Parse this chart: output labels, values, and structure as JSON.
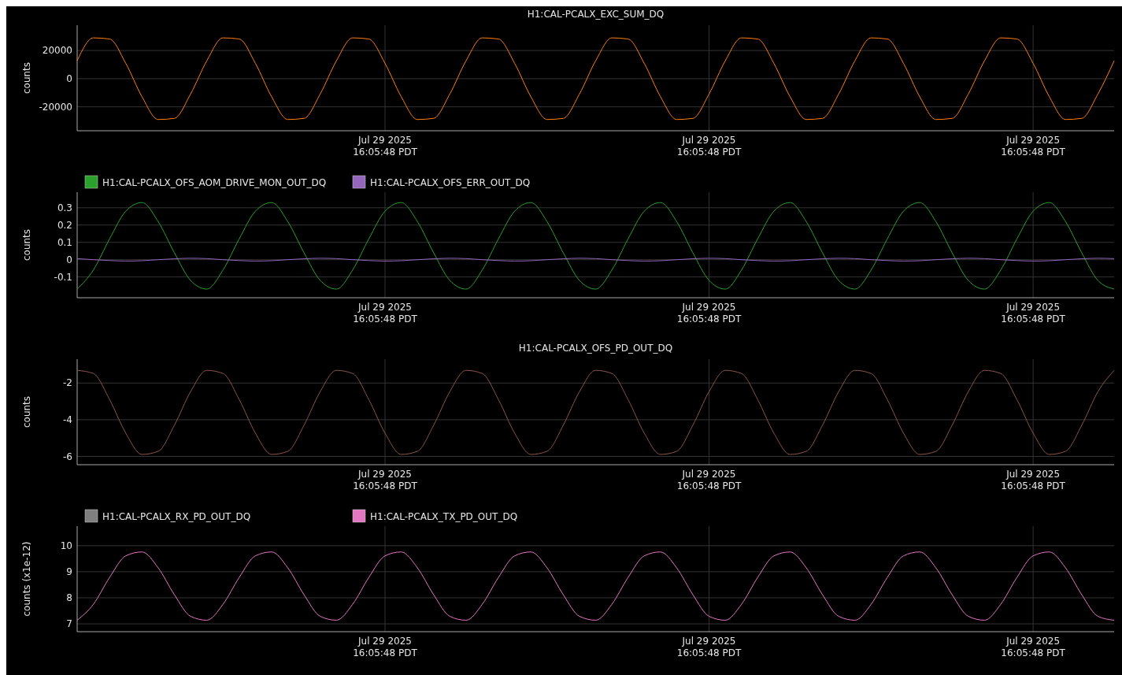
{
  "chart_data": [
    {
      "type": "line",
      "title": "H1:CAL-PCALX_EXC_SUM_DQ",
      "ylabel": "counts",
      "grid": true,
      "ylim": [
        -37000,
        38000
      ],
      "yticks": [
        -20000,
        0,
        20000
      ],
      "categories": [
        null,
        null,
        null,
        null,
        null,
        null,
        null,
        null,
        null,
        null,
        null,
        null,
        null,
        null,
        null,
        null,
        null,
        null,
        null,
        "Jul 29 2025\n16:05:48 PDT",
        null,
        null,
        null,
        null,
        null,
        null,
        null,
        null,
        null,
        null,
        null,
        null,
        null,
        null,
        null,
        null,
        null,
        null,
        null,
        "Jul 29 2025\n16:05:48 PDT",
        null,
        null,
        null,
        null,
        null,
        null,
        null,
        null,
        null,
        null,
        null,
        null,
        null,
        null,
        null,
        null,
        null,
        null,
        null,
        "Jul 29 2025\n16:05:48 PDT",
        null,
        null,
        null,
        null,
        null
      ],
      "series": [
        {
          "color": "#ff7f0e",
          "values": [
            12700,
            29000,
            28200,
            10900,
            -12800,
            -29000,
            -28200,
            -10900,
            12700,
            29000,
            28200,
            10900,
            -12800,
            -29000,
            -28200,
            -10900,
            12700,
            29000,
            28200,
            10900,
            -12800,
            -29000,
            -28200,
            -10900,
            12700,
            29000,
            28200,
            10900,
            -12800,
            -29000,
            -28200,
            -10900,
            12700,
            29000,
            28200,
            10900,
            -12800,
            -29000,
            -28200,
            -10900,
            12700,
            29000,
            28200,
            10900,
            -12800,
            -29000,
            -28200,
            -10900,
            12700,
            29000,
            28200,
            10900,
            -12800,
            -29000,
            -28200,
            -10900,
            12700,
            29000,
            28200,
            10900,
            -12800,
            -29000,
            -28200,
            -10900,
            12700
          ]
        }
      ]
    },
    {
      "type": "line",
      "ylabel": "counts",
      "grid": true,
      "legend": "top left",
      "ylim": [
        -0.22,
        0.39
      ],
      "yticks": [
        -0.1,
        0,
        0.1,
        0.2,
        0.3
      ],
      "categories": [
        null,
        null,
        null,
        null,
        null,
        null,
        null,
        null,
        null,
        null,
        null,
        null,
        null,
        null,
        null,
        null,
        null,
        null,
        null,
        "Jul 29 2025\n16:05:48 PDT",
        null,
        null,
        null,
        null,
        null,
        null,
        null,
        null,
        null,
        null,
        null,
        null,
        null,
        null,
        null,
        null,
        null,
        null,
        null,
        "Jul 29 2025\n16:05:48 PDT",
        null,
        null,
        null,
        null,
        null,
        null,
        null,
        null,
        null,
        null,
        null,
        null,
        null,
        null,
        null,
        null,
        null,
        null,
        null,
        "Jul 29 2025\n16:05:48 PDT",
        null,
        null,
        null,
        null,
        null
      ],
      "series": [
        {
          "name": "H1:CAL-PCALX_OFS_AOM_DRIVE_MON_OUT_DQ",
          "color": "#2ca02c",
          "values": [
            -0.17,
            -0.06,
            0.12,
            0.28,
            0.33,
            0.22,
            0.04,
            -0.12,
            -0.17,
            -0.06,
            0.12,
            0.28,
            0.33,
            0.22,
            0.04,
            -0.12,
            -0.17,
            -0.06,
            0.12,
            0.28,
            0.33,
            0.22,
            0.04,
            -0.12,
            -0.17,
            -0.06,
            0.12,
            0.28,
            0.33,
            0.22,
            0.04,
            -0.12,
            -0.17,
            -0.06,
            0.12,
            0.28,
            0.33,
            0.22,
            0.04,
            -0.12,
            -0.17,
            -0.06,
            0.12,
            0.28,
            0.33,
            0.22,
            0.04,
            -0.12,
            -0.17,
            -0.06,
            0.12,
            0.28,
            0.33,
            0.22,
            0.04,
            -0.12,
            -0.17,
            -0.06,
            0.12,
            0.28,
            0.33,
            0.22,
            0.04,
            -0.12,
            -0.17
          ]
        },
        {
          "name": "H1:CAL-PCALX_OFS_ERR_OUT_DQ",
          "color": "#9467bd",
          "values": [
            0.006,
            0,
            -0.005,
            -0.008,
            -0.006,
            0,
            0.005,
            0.008,
            0.006,
            0,
            -0.005,
            -0.008,
            -0.006,
            0,
            0.005,
            0.008,
            0.006,
            0,
            -0.005,
            -0.008,
            -0.006,
            0,
            0.005,
            0.008,
            0.006,
            0,
            -0.005,
            -0.008,
            -0.006,
            0,
            0.005,
            0.008,
            0.006,
            0,
            -0.005,
            -0.008,
            -0.006,
            0,
            0.005,
            0.008,
            0.006,
            0,
            -0.005,
            -0.008,
            -0.006,
            0,
            0.005,
            0.008,
            0.006,
            0,
            -0.005,
            -0.008,
            -0.006,
            0,
            0.005,
            0.008,
            0.006,
            0,
            -0.005,
            -0.008,
            -0.006,
            0,
            0.005,
            0.008,
            0.006
          ]
        }
      ]
    },
    {
      "type": "line",
      "title": "H1:CAL-PCALX_OFS_PD_OUT_DQ",
      "ylabel": "counts",
      "grid": true,
      "ylim": [
        -6.45,
        -0.7
      ],
      "yticks": [
        -6,
        -4,
        -2
      ],
      "categories": [
        null,
        null,
        null,
        null,
        null,
        null,
        null,
        null,
        null,
        null,
        null,
        null,
        null,
        null,
        null,
        null,
        null,
        null,
        null,
        "Jul 29 2025\n16:05:48 PDT",
        null,
        null,
        null,
        null,
        null,
        null,
        null,
        null,
        null,
        null,
        null,
        null,
        null,
        null,
        null,
        null,
        null,
        null,
        null,
        "Jul 29 2025\n16:05:48 PDT",
        null,
        null,
        null,
        null,
        null,
        null,
        null,
        null,
        null,
        null,
        null,
        null,
        null,
        null,
        null,
        null,
        null,
        null,
        null,
        "Jul 29 2025\n16:05:48 PDT",
        null,
        null,
        null,
        null,
        null
      ],
      "series": [
        {
          "color": "#8c564b",
          "values": [
            -1.31,
            -1.48,
            -2.9,
            -4.73,
            -5.89,
            -5.72,
            -4.3,
            -2.47,
            -1.31,
            -1.48,
            -2.9,
            -4.73,
            -5.89,
            -5.72,
            -4.3,
            -2.47,
            -1.31,
            -1.48,
            -2.9,
            -4.73,
            -5.89,
            -5.72,
            -4.3,
            -2.47,
            -1.31,
            -1.48,
            -2.9,
            -4.73,
            -5.89,
            -5.72,
            -4.3,
            -2.47,
            -1.31,
            -1.48,
            -2.9,
            -4.73,
            -5.89,
            -5.72,
            -4.3,
            -2.47,
            -1.31,
            -1.48,
            -2.9,
            -4.73,
            -5.89,
            -5.72,
            -4.3,
            -2.47,
            -1.31,
            -1.48,
            -2.9,
            -4.73,
            -5.89,
            -5.72,
            -4.3,
            -2.47,
            -1.31,
            -1.48,
            -2.9,
            -4.73,
            -5.89,
            -5.72,
            -4.3,
            -2.47,
            -1.31
          ]
        }
      ]
    },
    {
      "type": "line",
      "ylabel": "counts (x1e-12)",
      "grid": true,
      "legend": "top left",
      "ylim": [
        6.7,
        10.75
      ],
      "yticks": [
        7,
        8,
        9,
        10
      ],
      "categories": [
        null,
        null,
        null,
        null,
        null,
        null,
        null,
        null,
        null,
        null,
        null,
        null,
        null,
        null,
        null,
        null,
        null,
        null,
        null,
        "Jul 29 2025\n16:05:48 PDT",
        null,
        null,
        null,
        null,
        null,
        null,
        null,
        null,
        null,
        null,
        null,
        null,
        null,
        null,
        null,
        null,
        null,
        null,
        null,
        "Jul 29 2025\n16:05:48 PDT",
        null,
        null,
        null,
        null,
        null,
        null,
        null,
        null,
        null,
        null,
        null,
        null,
        null,
        null,
        null,
        null,
        null,
        null,
        null,
        "Jul 29 2025\n16:05:48 PDT",
        null,
        null,
        null,
        null,
        null
      ],
      "series": [
        {
          "name": "H1:CAL-PCALX_RX_PD_OUT_DQ",
          "color": "#7f7f7f",
          "values": [
            null,
            null,
            null,
            null,
            null,
            null,
            null,
            null,
            null,
            null,
            null,
            null,
            null,
            null,
            null,
            null,
            null,
            null,
            null,
            null,
            null,
            null,
            null,
            null,
            null,
            null,
            null,
            null,
            null,
            null,
            null,
            null,
            null,
            null,
            null,
            null,
            null,
            null,
            null,
            null,
            null,
            null,
            null,
            null,
            null,
            null,
            null,
            null,
            null,
            null,
            null,
            null,
            null,
            null,
            null,
            null,
            null,
            null,
            null,
            null,
            null,
            null,
            null,
            null,
            null
          ]
        },
        {
          "name": "H1:CAL-PCALX_TX_PD_OUT_DQ",
          "color": "#e377c2",
          "values": [
            7.14,
            7.75,
            8.78,
            9.61,
            9.76,
            9.15,
            8.12,
            7.29,
            7.14,
            7.75,
            8.78,
            9.61,
            9.76,
            9.15,
            8.12,
            7.29,
            7.14,
            7.75,
            8.78,
            9.61,
            9.76,
            9.15,
            8.12,
            7.29,
            7.14,
            7.75,
            8.78,
            9.61,
            9.76,
            9.15,
            8.12,
            7.29,
            7.14,
            7.75,
            8.78,
            9.61,
            9.76,
            9.15,
            8.12,
            7.29,
            7.14,
            7.75,
            8.78,
            9.61,
            9.76,
            9.15,
            8.12,
            7.29,
            7.14,
            7.75,
            8.78,
            9.61,
            9.76,
            9.15,
            8.12,
            7.29,
            7.14,
            7.75,
            8.78,
            9.61,
            9.76,
            9.15,
            8.12,
            7.29,
            7.14
          ]
        }
      ]
    }
  ]
}
